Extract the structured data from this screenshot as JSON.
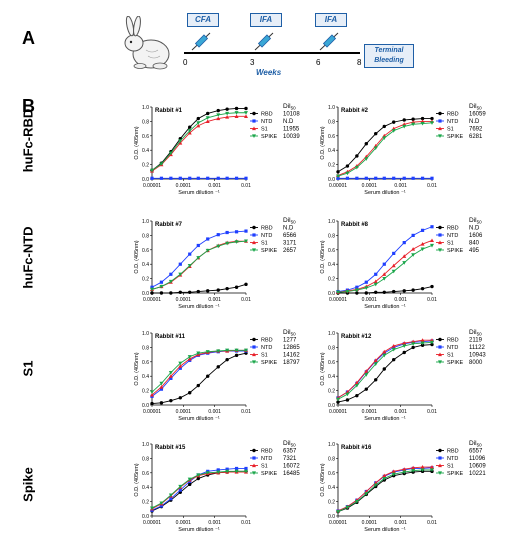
{
  "panel_a": {
    "letter": "A",
    "steps": [
      {
        "label": "CFA",
        "week": "0"
      },
      {
        "label": "IFA",
        "week": "3"
      },
      {
        "label": "IFA",
        "week": "6"
      }
    ],
    "end_week": "8",
    "axis_label": "Weeks",
    "terminal": "Terminal Bleeding"
  },
  "panel_b": {
    "letter": "B",
    "row_labels": [
      "huFc-RBD",
      "huFc-NTD",
      "S1",
      "Spike"
    ],
    "colors": {
      "RBD": "#000000",
      "NTD": "#1f3fff",
      "S1": "#e8202a",
      "SPIKE": "#1aa64a"
    }
  },
  "chart_data": [
    {
      "type": "line",
      "title": "Rabbit #1",
      "xlabel": "Serum dilution ⁻¹",
      "ylabel": "O.D. (405nm)",
      "x_scale": "log",
      "xlim": [
        1e-05,
        0.01
      ],
      "ylim": [
        0,
        1.0
      ],
      "x_ticks": [
        "0.00001",
        "0.0001",
        "0.001",
        "0.01"
      ],
      "y_ticks": [
        "0.0",
        "0.2",
        "0.4",
        "0.6",
        "0.8",
        "1.0"
      ],
      "x": [
        1e-05,
        2e-05,
        4e-05,
        8e-05,
        0.00016,
        0.0003,
        0.0006,
        0.0013,
        0.0025,
        0.005,
        0.01
      ],
      "dil_header": "Dil50",
      "series": [
        {
          "name": "RBD",
          "dil50": "10108",
          "values": [
            0.12,
            0.22,
            0.38,
            0.56,
            0.72,
            0.84,
            0.91,
            0.95,
            0.97,
            0.98,
            0.98
          ]
        },
        {
          "name": "NTD",
          "dil50": "N.D",
          "values": [
            0.01,
            0.01,
            0.01,
            0.01,
            0.01,
            0.01,
            0.01,
            0.01,
            0.01,
            0.01,
            0.01
          ]
        },
        {
          "name": "S1",
          "dil50": "11955",
          "values": [
            0.11,
            0.2,
            0.34,
            0.5,
            0.64,
            0.74,
            0.8,
            0.84,
            0.86,
            0.87,
            0.87
          ]
        },
        {
          "name": "SPIKE",
          "dil50": "10039",
          "values": [
            0.12,
            0.21,
            0.36,
            0.53,
            0.67,
            0.78,
            0.85,
            0.89,
            0.91,
            0.92,
            0.92
          ]
        }
      ]
    },
    {
      "type": "line",
      "title": "Rabbit #2",
      "xlabel": "Serum dilution ⁻¹",
      "ylabel": "O.D. (405nm)",
      "x_scale": "log",
      "xlim": [
        1e-05,
        0.01
      ],
      "ylim": [
        0,
        1.0
      ],
      "x_ticks": [
        "0.00001",
        "0.0001",
        "0.001",
        "0.01"
      ],
      "y_ticks": [
        "0.0",
        "0.2",
        "0.4",
        "0.6",
        "0.8",
        "1.0"
      ],
      "x": [
        1e-05,
        2e-05,
        4e-05,
        8e-05,
        0.00016,
        0.0003,
        0.0006,
        0.0013,
        0.0025,
        0.005,
        0.01
      ],
      "dil_header": "Dil50",
      "series": [
        {
          "name": "RBD",
          "dil50": "16059",
          "values": [
            0.1,
            0.18,
            0.32,
            0.49,
            0.63,
            0.73,
            0.79,
            0.82,
            0.83,
            0.84,
            0.84
          ]
        },
        {
          "name": "NTD",
          "dil50": "N.D",
          "values": [
            0.01,
            0.01,
            0.01,
            0.01,
            0.01,
            0.01,
            0.01,
            0.01,
            0.01,
            0.01,
            0.01
          ]
        },
        {
          "name": "S1",
          "dil50": "7692",
          "values": [
            0.05,
            0.1,
            0.18,
            0.31,
            0.46,
            0.6,
            0.7,
            0.76,
            0.79,
            0.8,
            0.8
          ]
        },
        {
          "name": "SPIKE",
          "dil50": "6281",
          "values": [
            0.04,
            0.08,
            0.16,
            0.28,
            0.43,
            0.57,
            0.67,
            0.73,
            0.76,
            0.77,
            0.78
          ]
        }
      ]
    },
    {
      "type": "line",
      "title": "Rabbit #7",
      "xlabel": "Serum dilution ⁻¹",
      "ylabel": "O.D. (405nm)",
      "x_scale": "log",
      "xlim": [
        1e-05,
        0.01
      ],
      "ylim": [
        0,
        1.0
      ],
      "x_ticks": [
        "0.00001",
        "0.0001",
        "0.001",
        "0.01"
      ],
      "y_ticks": [
        "0.0",
        "0.2",
        "0.4",
        "0.6",
        "0.8",
        "1.0"
      ],
      "x": [
        1e-05,
        2e-05,
        4e-05,
        8e-05,
        0.00016,
        0.0003,
        0.0006,
        0.0013,
        0.0025,
        0.005,
        0.01
      ],
      "dil_header": "Dil50",
      "series": [
        {
          "name": "RBD",
          "dil50": "N.D",
          "values": [
            0.0,
            0.0,
            0.0,
            0.01,
            0.01,
            0.02,
            0.03,
            0.04,
            0.06,
            0.08,
            0.12
          ]
        },
        {
          "name": "NTD",
          "dil50": "6566",
          "values": [
            0.08,
            0.15,
            0.26,
            0.4,
            0.54,
            0.66,
            0.75,
            0.81,
            0.84,
            0.85,
            0.86
          ]
        },
        {
          "name": "S1",
          "dil50": "3171",
          "values": [
            0.05,
            0.09,
            0.15,
            0.25,
            0.37,
            0.49,
            0.59,
            0.66,
            0.7,
            0.72,
            0.72
          ]
        },
        {
          "name": "SPIKE",
          "dil50": "2657",
          "values": [
            0.05,
            0.09,
            0.16,
            0.26,
            0.38,
            0.49,
            0.59,
            0.65,
            0.69,
            0.71,
            0.72
          ]
        }
      ]
    },
    {
      "type": "line",
      "title": "Rabbit #8",
      "xlabel": "Serum dilution ⁻¹",
      "ylabel": "O.D. (405nm)",
      "x_scale": "log",
      "xlim": [
        1e-05,
        0.01
      ],
      "ylim": [
        0,
        1.0
      ],
      "x_ticks": [
        "0.00001",
        "0.0001",
        "0.001",
        "0.01"
      ],
      "y_ticks": [
        "0.0",
        "0.2",
        "0.4",
        "0.6",
        "0.8",
        "1.0"
      ],
      "x": [
        1e-05,
        2e-05,
        4e-05,
        8e-05,
        0.00016,
        0.0003,
        0.0006,
        0.0013,
        0.0025,
        0.005,
        0.01
      ],
      "dil_header": "Dil50",
      "series": [
        {
          "name": "RBD",
          "dil50": "N.D",
          "values": [
            0.0,
            0.0,
            0.0,
            0.0,
            0.01,
            0.01,
            0.02,
            0.03,
            0.04,
            0.06,
            0.09
          ]
        },
        {
          "name": "NTD",
          "dil50": "1606",
          "values": [
            0.02,
            0.04,
            0.08,
            0.15,
            0.26,
            0.4,
            0.55,
            0.7,
            0.8,
            0.87,
            0.92
          ]
        },
        {
          "name": "S1",
          "dil50": "840",
          "values": [
            0.01,
            0.03,
            0.05,
            0.09,
            0.16,
            0.26,
            0.38,
            0.51,
            0.61,
            0.68,
            0.73
          ]
        },
        {
          "name": "SPIKE",
          "dil50": "495",
          "values": [
            0.01,
            0.02,
            0.04,
            0.07,
            0.12,
            0.2,
            0.3,
            0.42,
            0.53,
            0.61,
            0.66
          ]
        }
      ]
    },
    {
      "type": "line",
      "title": "Rabbit #11",
      "xlabel": "Serum dilution ⁻¹",
      "ylabel": "O.D. (405nm)",
      "x_scale": "log",
      "xlim": [
        1e-05,
        0.01
      ],
      "ylim": [
        0,
        1.0
      ],
      "x_ticks": [
        "0.00001",
        "0.0001",
        "0.001",
        "0.01"
      ],
      "y_ticks": [
        "0.0",
        "0.2",
        "0.4",
        "0.6",
        "0.8",
        "1.0"
      ],
      "x": [
        1e-05,
        2e-05,
        4e-05,
        8e-05,
        0.00016,
        0.0003,
        0.0006,
        0.0013,
        0.0025,
        0.005,
        0.01
      ],
      "dil_header": "Dil50",
      "series": [
        {
          "name": "RBD",
          "dil50": "1277",
          "values": [
            0.02,
            0.03,
            0.06,
            0.1,
            0.17,
            0.27,
            0.4,
            0.53,
            0.63,
            0.69,
            0.72
          ]
        },
        {
          "name": "NTD",
          "dil50": "12865",
          "values": [
            0.12,
            0.22,
            0.37,
            0.51,
            0.62,
            0.69,
            0.72,
            0.74,
            0.75,
            0.75,
            0.75
          ]
        },
        {
          "name": "S1",
          "dil50": "14162",
          "values": [
            0.14,
            0.25,
            0.4,
            0.54,
            0.64,
            0.7,
            0.73,
            0.75,
            0.75,
            0.76,
            0.76
          ]
        },
        {
          "name": "SPIKE",
          "dil50": "18797",
          "values": [
            0.18,
            0.3,
            0.45,
            0.58,
            0.67,
            0.72,
            0.74,
            0.75,
            0.76,
            0.76,
            0.76
          ]
        }
      ]
    },
    {
      "type": "line",
      "title": "Rabbit #12",
      "xlabel": "Serum dilution ⁻¹",
      "ylabel": "O.D. (405nm)",
      "x_scale": "log",
      "xlim": [
        1e-05,
        0.01
      ],
      "ylim": [
        0,
        1.0
      ],
      "x_ticks": [
        "0.00001",
        "0.0001",
        "0.001",
        "0.01"
      ],
      "y_ticks": [
        "0.0",
        "0.2",
        "0.4",
        "0.6",
        "0.8",
        "1.0"
      ],
      "x": [
        1e-05,
        2e-05,
        4e-05,
        8e-05,
        0.00016,
        0.0003,
        0.0006,
        0.0013,
        0.0025,
        0.005,
        0.01
      ],
      "dil_header": "Dil50",
      "series": [
        {
          "name": "RBD",
          "dil50": "2119",
          "values": [
            0.04,
            0.07,
            0.13,
            0.22,
            0.35,
            0.5,
            0.63,
            0.73,
            0.8,
            0.83,
            0.84
          ]
        },
        {
          "name": "NTD",
          "dil50": "11122",
          "values": [
            0.1,
            0.18,
            0.3,
            0.46,
            0.61,
            0.72,
            0.8,
            0.85,
            0.87,
            0.88,
            0.89
          ]
        },
        {
          "name": "S1",
          "dil50": "10943",
          "values": [
            0.1,
            0.18,
            0.31,
            0.47,
            0.62,
            0.74,
            0.82,
            0.86,
            0.88,
            0.9,
            0.9
          ]
        },
        {
          "name": "SPIKE",
          "dil50": "8000",
          "values": [
            0.08,
            0.15,
            0.27,
            0.42,
            0.57,
            0.69,
            0.77,
            0.82,
            0.85,
            0.86,
            0.87
          ]
        }
      ]
    },
    {
      "type": "line",
      "title": "Rabbit #15",
      "xlabel": "Serum dilution ⁻¹",
      "ylabel": "O.D. (405nm)",
      "x_scale": "log",
      "xlim": [
        1e-05,
        0.01
      ],
      "ylim": [
        0,
        1.0
      ],
      "x_ticks": [
        "0.00001",
        "0.0001",
        "0.001",
        "0.01"
      ],
      "y_ticks": [
        "0.0",
        "0.2",
        "0.4",
        "0.6",
        "0.8",
        "1.0"
      ],
      "x": [
        1e-05,
        2e-05,
        4e-05,
        8e-05,
        0.00016,
        0.0003,
        0.0006,
        0.0013,
        0.0025,
        0.005,
        0.01
      ],
      "dil_header": "Dil50",
      "series": [
        {
          "name": "RBD",
          "dil50": "6357",
          "values": [
            0.07,
            0.13,
            0.22,
            0.33,
            0.44,
            0.52,
            0.57,
            0.6,
            0.61,
            0.62,
            0.62
          ]
        },
        {
          "name": "NTD",
          "dil50": "7321",
          "values": [
            0.08,
            0.14,
            0.24,
            0.36,
            0.48,
            0.57,
            0.62,
            0.64,
            0.65,
            0.66,
            0.66
          ]
        },
        {
          "name": "S1",
          "dil50": "16072",
          "values": [
            0.1,
            0.17,
            0.28,
            0.4,
            0.5,
            0.56,
            0.59,
            0.6,
            0.61,
            0.61,
            0.61
          ]
        },
        {
          "name": "SPIKE",
          "dil50": "16485",
          "values": [
            0.11,
            0.18,
            0.29,
            0.41,
            0.51,
            0.57,
            0.6,
            0.61,
            0.62,
            0.62,
            0.62
          ]
        }
      ]
    },
    {
      "type": "line",
      "title": "Rabbit #16",
      "xlabel": "Serum dilution ⁻¹",
      "ylabel": "O.D. (405nm)",
      "x_scale": "log",
      "xlim": [
        1e-05,
        0.01
      ],
      "ylim": [
        0,
        1.0
      ],
      "x_ticks": [
        "0.00001",
        "0.0001",
        "0.001",
        "0.01"
      ],
      "y_ticks": [
        "0.0",
        "0.2",
        "0.4",
        "0.6",
        "0.8",
        "1.0"
      ],
      "x": [
        1e-05,
        2e-05,
        4e-05,
        8e-05,
        0.00016,
        0.0003,
        0.0006,
        0.0013,
        0.0025,
        0.005,
        0.01
      ],
      "dil_header": "Dil50",
      "series": [
        {
          "name": "RBD",
          "dil50": "6557",
          "values": [
            0.06,
            0.11,
            0.19,
            0.3,
            0.41,
            0.5,
            0.56,
            0.59,
            0.61,
            0.62,
            0.62
          ]
        },
        {
          "name": "NTD",
          "dil50": "11096",
          "values": [
            0.07,
            0.13,
            0.22,
            0.34,
            0.46,
            0.55,
            0.61,
            0.64,
            0.66,
            0.66,
            0.67
          ]
        },
        {
          "name": "S1",
          "dil50": "10609",
          "values": [
            0.07,
            0.13,
            0.22,
            0.34,
            0.46,
            0.56,
            0.62,
            0.65,
            0.67,
            0.68,
            0.68
          ]
        },
        {
          "name": "SPIKE",
          "dil50": "10221",
          "values": [
            0.06,
            0.12,
            0.2,
            0.31,
            0.43,
            0.52,
            0.58,
            0.61,
            0.63,
            0.64,
            0.64
          ]
        }
      ]
    }
  ]
}
